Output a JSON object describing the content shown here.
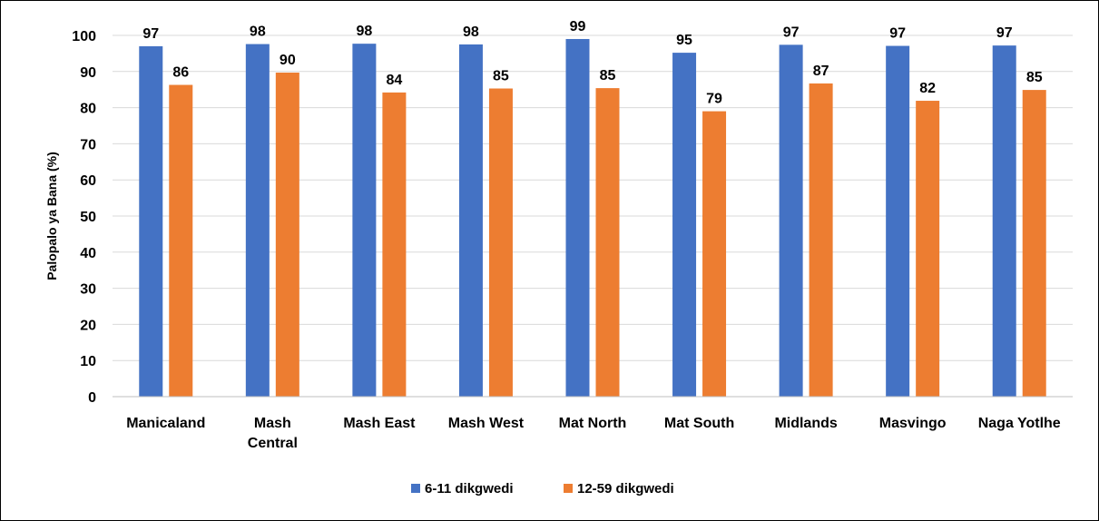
{
  "chart_data": {
    "type": "bar",
    "title": "",
    "xlabel": "",
    "ylabel": "Palopalo ya Bana (%)",
    "ylim": [
      0,
      100
    ],
    "yticks": [
      0,
      10,
      20,
      30,
      40,
      50,
      60,
      70,
      80,
      90,
      100
    ],
    "grid": true,
    "legend_position": "bottom",
    "categories": [
      [
        "Manicaland"
      ],
      [
        "Mash",
        "Central"
      ],
      [
        "Mash East"
      ],
      [
        "Mash West"
      ],
      [
        "Mat North"
      ],
      [
        "Mat South"
      ],
      [
        "Midlands"
      ],
      [
        "Masvingo"
      ],
      [
        "Naga Yotlhe"
      ]
    ],
    "series": [
      {
        "name": "6-11 dikgwedi",
        "color": "#4472C4",
        "values": [
          97.0,
          97.6,
          97.7,
          97.5,
          99.0,
          95.2,
          97.4,
          97.1,
          97.2
        ],
        "labels": [
          "97",
          "98",
          "98",
          "98",
          "99",
          "95",
          "97",
          "97",
          "97"
        ]
      },
      {
        "name": "12-59 dikgwedi",
        "color": "#ED7D31",
        "values": [
          86.3,
          89.7,
          84.2,
          85.3,
          85.4,
          79.0,
          86.7,
          81.9,
          84.9
        ],
        "labels": [
          "86",
          "90",
          "84",
          "85",
          "85",
          "79",
          "87",
          "82",
          "85"
        ]
      }
    ]
  }
}
